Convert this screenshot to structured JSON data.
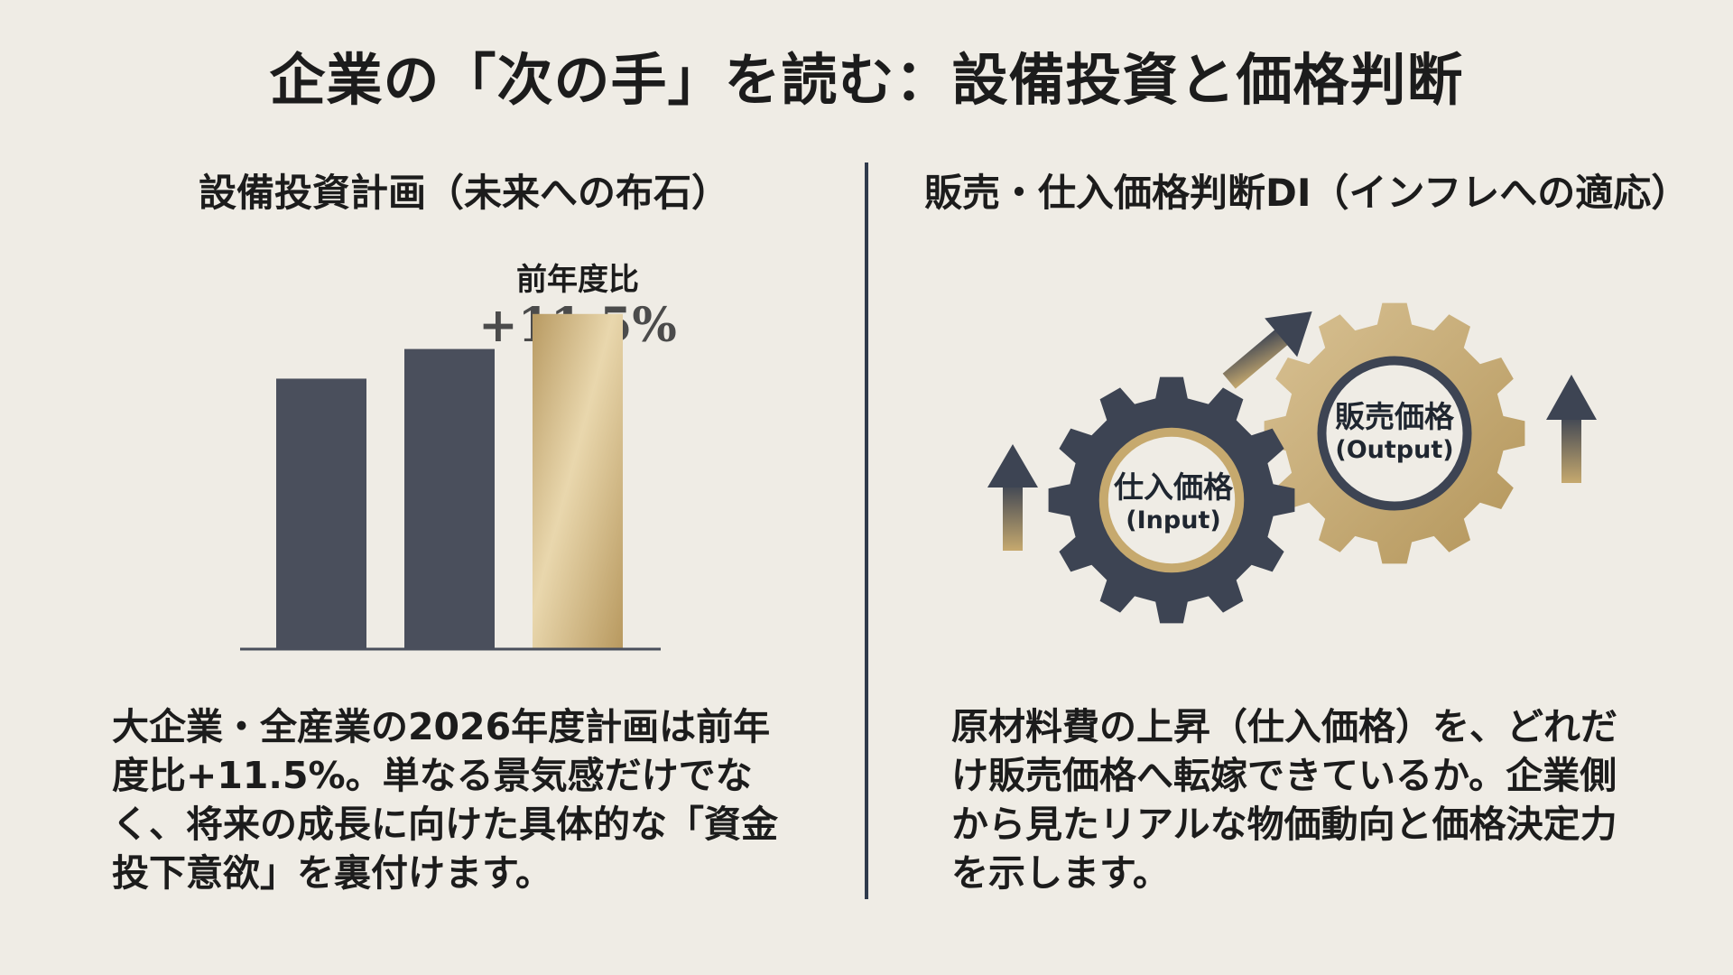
{
  "title": "企業の「次の手」を読む：設備投資と価格判断",
  "left_panel": {
    "heading": "設備投資計画（未来への布石）",
    "comparison_label": "前年度比",
    "comparison_value": "+11.5%",
    "description": "大企業・全産業の2026年度計画は前年度比+11.5%。単なる景気感だけでなく、将来の成長に向けた具体的な「資金投下意欲」を裏付けます。"
  },
  "chart_data": {
    "type": "bar",
    "categories": [
      "",
      "",
      ""
    ],
    "values": [
      100,
      111,
      124
    ],
    "colors": [
      "#4a4f5c",
      "#4a4f5c",
      "#c9b07d"
    ],
    "title": "",
    "xlabel": "",
    "ylabel": "",
    "ylim": [
      0,
      140
    ],
    "grid": false
  },
  "right_panel": {
    "heading": "販売・仕入価格判断DI（インフレへの適応）",
    "gears": {
      "input": {
        "label": "仕入価格",
        "sublabel": "(Input)",
        "color": "#3d4453"
      },
      "output": {
        "label": "販売価格",
        "sublabel": "(Output)",
        "color": "#c6a96e"
      }
    },
    "description": "原材料費の上昇（仕入価格）を、どれだけ販売価格へ転嫁できているか。企業側から見たリアルな物価動向と価格決定力を示します。"
  },
  "colors": {
    "background": "#efece5",
    "navy": "#3d4453",
    "gold": "#c6a96e",
    "divider": "#2f3a4c"
  },
  "icons": [
    "gear-icon",
    "up-arrow-icon",
    "diagonal-arrow-icon"
  ]
}
